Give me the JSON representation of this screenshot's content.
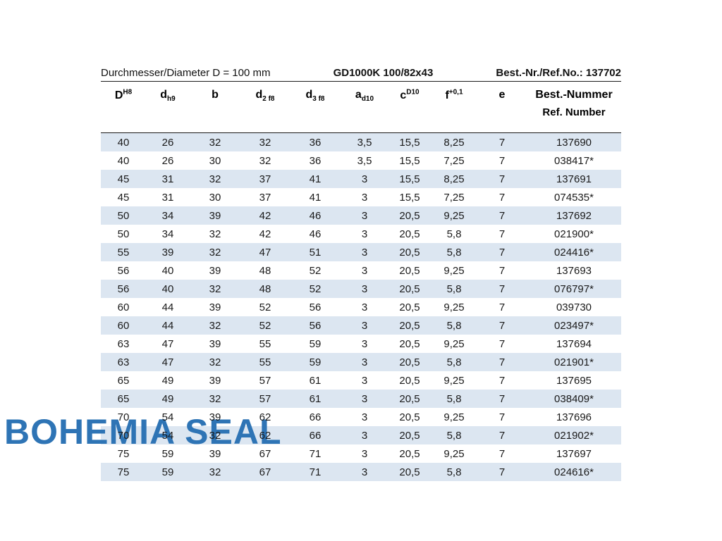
{
  "header": {
    "left": "Durchmesser/Diameter  D = 100 mm",
    "center": "GD1000K 100/82x43",
    "right": "Best.-Nr./Ref.No.: 137702"
  },
  "watermark": {
    "text": "BOHEMIA SEAL",
    "color": "#2e74b5"
  },
  "table": {
    "headers": [
      {
        "base": "D",
        "sup": "H8"
      },
      {
        "base": "d",
        "sub": "h9"
      },
      {
        "base": "b"
      },
      {
        "base": "d",
        "sub": "2 f8"
      },
      {
        "base": "d",
        "sub": "3 f8"
      },
      {
        "base": "a",
        "sub": "d10"
      },
      {
        "base": "c",
        "sup": "D10"
      },
      {
        "base": "f",
        "sup": "+0,1"
      },
      {
        "base": "e"
      },
      {
        "base": "Best.-Nummer",
        "line2": "Ref. Number"
      }
    ],
    "rows": [
      [
        "40",
        "26",
        "32",
        "32",
        "36",
        "3,5",
        "15,5",
        "8,25",
        "7",
        "137690"
      ],
      [
        "40",
        "26",
        "30",
        "32",
        "36",
        "3,5",
        "15,5",
        "7,25",
        "7",
        "038417*"
      ],
      [
        "45",
        "31",
        "32",
        "37",
        "41",
        "3",
        "15,5",
        "8,25",
        "7",
        "137691"
      ],
      [
        "45",
        "31",
        "30",
        "37",
        "41",
        "3",
        "15,5",
        "7,25",
        "7",
        "074535*"
      ],
      [
        "50",
        "34",
        "39",
        "42",
        "46",
        "3",
        "20,5",
        "9,25",
        "7",
        "137692"
      ],
      [
        "50",
        "34",
        "32",
        "42",
        "46",
        "3",
        "20,5",
        "5,8",
        "7",
        "021900*"
      ],
      [
        "55",
        "39",
        "32",
        "47",
        "51",
        "3",
        "20,5",
        "5,8",
        "7",
        "024416*"
      ],
      [
        "56",
        "40",
        "39",
        "48",
        "52",
        "3",
        "20,5",
        "9,25",
        "7",
        "137693"
      ],
      [
        "56",
        "40",
        "32",
        "48",
        "52",
        "3",
        "20,5",
        "5,8",
        "7",
        "076797*"
      ],
      [
        "60",
        "44",
        "39",
        "52",
        "56",
        "3",
        "20,5",
        "9,25",
        "7",
        "039730"
      ],
      [
        "60",
        "44",
        "32",
        "52",
        "56",
        "3",
        "20,5",
        "5,8",
        "7",
        "023497*"
      ],
      [
        "63",
        "47",
        "39",
        "55",
        "59",
        "3",
        "20,5",
        "9,25",
        "7",
        "137694"
      ],
      [
        "63",
        "47",
        "32",
        "55",
        "59",
        "3",
        "20,5",
        "5,8",
        "7",
        "021901*"
      ],
      [
        "65",
        "49",
        "39",
        "57",
        "61",
        "3",
        "20,5",
        "9,25",
        "7",
        "137695"
      ],
      [
        "65",
        "49",
        "32",
        "57",
        "61",
        "3",
        "20,5",
        "5,8",
        "7",
        "038409*"
      ],
      [
        "70",
        "54",
        "39",
        "62",
        "66",
        "3",
        "20,5",
        "9,25",
        "7",
        "137696"
      ],
      [
        "70",
        "54",
        "32",
        "62",
        "66",
        "3",
        "20,5",
        "5,8",
        "7",
        "021902*"
      ],
      [
        "75",
        "59",
        "39",
        "67",
        "71",
        "3",
        "20,5",
        "9,25",
        "7",
        "137697"
      ],
      [
        "75",
        "59",
        "32",
        "67",
        "71",
        "3",
        "20,5",
        "5,8",
        "7",
        "024616*"
      ]
    ],
    "row_colors": {
      "shaded": "#dce6f1",
      "plain": "#ffffff"
    }
  }
}
